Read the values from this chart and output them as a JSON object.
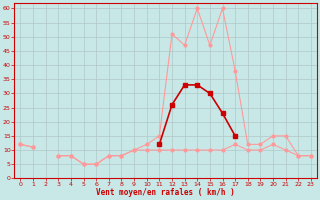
{
  "x": [
    0,
    1,
    2,
    3,
    4,
    5,
    6,
    7,
    8,
    9,
    10,
    11,
    12,
    13,
    14,
    15,
    16,
    17,
    18,
    19,
    20,
    21,
    22,
    23
  ],
  "line_dark": [
    null,
    null,
    null,
    null,
    null,
    null,
    null,
    null,
    null,
    null,
    null,
    12,
    26,
    33,
    33,
    30,
    23,
    15,
    null,
    null,
    null,
    null,
    null,
    null
  ],
  "line_light_max": [
    12,
    11,
    null,
    8,
    8,
    5,
    5,
    8,
    8,
    10,
    12,
    15,
    51,
    47,
    60,
    47,
    60,
    38,
    12,
    12,
    15,
    15,
    8,
    8
  ],
  "line_light_min": [
    12,
    11,
    null,
    8,
    8,
    5,
    5,
    8,
    8,
    10,
    10,
    10,
    10,
    10,
    10,
    10,
    10,
    12,
    10,
    10,
    12,
    10,
    8,
    8
  ],
  "bg_color": "#c8e8e8",
  "grid_color": "#b0c8c8",
  "line_dark_color": "#cc0000",
  "line_light_color": "#ff9999",
  "xlabel": "Vent moyen/en rafales ( km/h )",
  "ylim": [
    0,
    62
  ],
  "xlim": [
    -0.5,
    23.5
  ],
  "yticks": [
    0,
    5,
    10,
    15,
    20,
    25,
    30,
    35,
    40,
    45,
    50,
    55,
    60
  ],
  "xticks": [
    0,
    1,
    2,
    3,
    4,
    5,
    6,
    7,
    8,
    9,
    10,
    11,
    12,
    13,
    14,
    15,
    16,
    17,
    18,
    19,
    20,
    21,
    22,
    23
  ]
}
